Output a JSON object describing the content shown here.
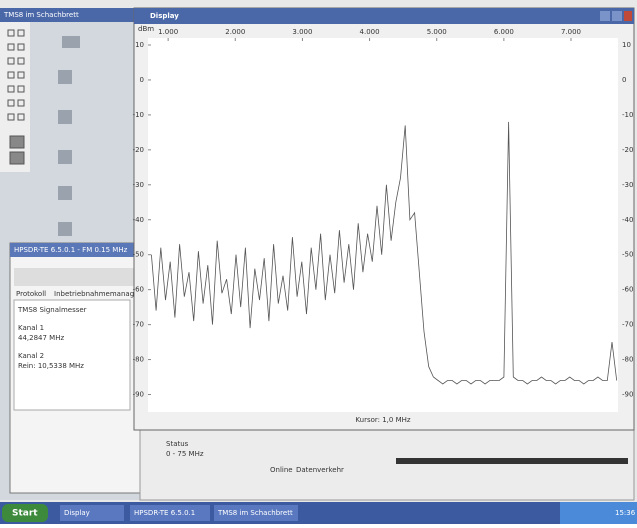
{
  "desktop_window": {
    "title": "TMS8 im Schachbrett"
  },
  "tool_window": {
    "title": "HPSDR-TE 6.5.0.1 - FM 0.15 MHz",
    "tabs": [
      "Protokoll",
      "Inbetriebnahmemanager"
    ],
    "lines": [
      "TMS8 Signalmesser",
      "Kanal 1",
      "44,2847 MHz",
      "Kanal 2",
      "Rein: 10,5338 MHz"
    ]
  },
  "status_panel": {
    "label": "Status",
    "range": "0 - 75 MHz",
    "mode": "Online",
    "traffic": "Datenverkehr"
  },
  "taskbar": {
    "start": "Start",
    "tasks": [
      "Display",
      "HPSDR-TE 6.5.0.1",
      "TMS8 im Schachbrett"
    ],
    "clock": "15:36"
  },
  "chart_data": {
    "type": "line",
    "title": "Display",
    "y_label": "dBm",
    "annotation": "Kursor: 1,0 MHz",
    "color": "#555555",
    "x": [
      750,
      820,
      890,
      960,
      1030,
      1100,
      1170,
      1240,
      1310,
      1380,
      1450,
      1520,
      1590,
      1660,
      1730,
      1800,
      1870,
      1940,
      2010,
      2080,
      2150,
      2220,
      2290,
      2360,
      2430,
      2500,
      2570,
      2640,
      2710,
      2780,
      2850,
      2920,
      2990,
      3060,
      3130,
      3200,
      3270,
      3340,
      3410,
      3480,
      3550,
      3620,
      3690,
      3760,
      3830,
      3900,
      3970,
      4040,
      4110,
      4180,
      4250,
      4320,
      4390,
      4460,
      4530,
      4600,
      4670,
      4740,
      4810,
      4880,
      4950,
      5020,
      5090,
      5160,
      5230,
      5300,
      5370,
      5440,
      5510,
      5580,
      5650,
      5720,
      5790,
      5860,
      5930,
      6000,
      6070,
      6140,
      6210,
      6280,
      6350,
      6420,
      6490,
      6560,
      6630,
      6700,
      6770,
      6840,
      6910,
      6980,
      7050,
      7120,
      7190,
      7260,
      7330,
      7400,
      7470,
      7540,
      7610,
      7680
    ],
    "values": [
      -50,
      -66,
      -48,
      -63,
      -52,
      -68,
      -47,
      -62,
      -55,
      -69,
      -49,
      -64,
      -53,
      -70,
      -46,
      -61,
      -57,
      -67,
      -50,
      -65,
      -48,
      -71,
      -54,
      -63,
      -51,
      -69,
      -47,
      -64,
      -56,
      -66,
      -45,
      -62,
      -52,
      -67,
      -48,
      -60,
      -44,
      -63,
      -50,
      -61,
      -43,
      -58,
      -47,
      -60,
      -41,
      -55,
      -44,
      -52,
      -36,
      -50,
      -30,
      -46,
      -35,
      -28,
      -13,
      -40,
      -38,
      -55,
      -72,
      -82,
      -85,
      -86,
      -87,
      -86,
      -86,
      -87,
      -86,
      -86,
      -87,
      -86,
      -86,
      -87,
      -86,
      -86,
      -86,
      -85,
      -12,
      -85,
      -86,
      -86,
      -87,
      -86,
      -86,
      -85,
      -86,
      -86,
      -87,
      -86,
      -86,
      -85,
      -86,
      -86,
      -87,
      -86,
      -86,
      -85,
      -86,
      -86,
      -75,
      -86
    ],
    "xlim": [
      700,
      7700
    ],
    "xticks": [
      {
        "value": 1000,
        "label": "1.000"
      },
      {
        "value": 2000,
        "label": "2.000"
      },
      {
        "value": 3000,
        "label": "3.000"
      },
      {
        "value": 4000,
        "label": "4.000"
      },
      {
        "value": 5000,
        "label": "5.000"
      },
      {
        "value": 6000,
        "label": "6.000"
      },
      {
        "value": 7000,
        "label": "7.000"
      }
    ],
    "ylim": [
      -95,
      12
    ],
    "yticks": [
      10,
      0,
      -10,
      -20,
      -30,
      -40,
      -50,
      -60,
      -70,
      -80,
      -90
    ]
  }
}
